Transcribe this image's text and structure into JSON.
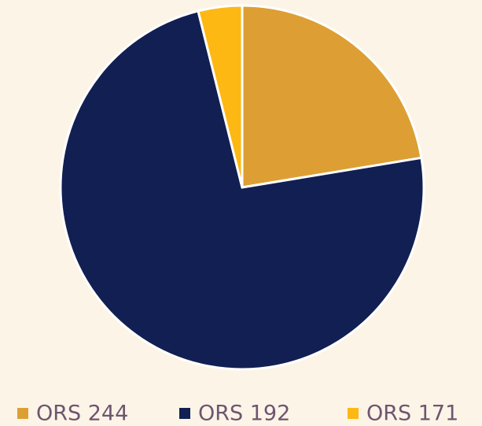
{
  "chart_data": {
    "type": "pie",
    "categories": [
      "ORS 244",
      "ORS 192",
      "ORS 171"
    ],
    "values": [
      22.4,
      73.7,
      3.9
    ],
    "colors": [
      "#dd9f33",
      "#121f52",
      "#fdb813"
    ],
    "legend": "bottom"
  }
}
